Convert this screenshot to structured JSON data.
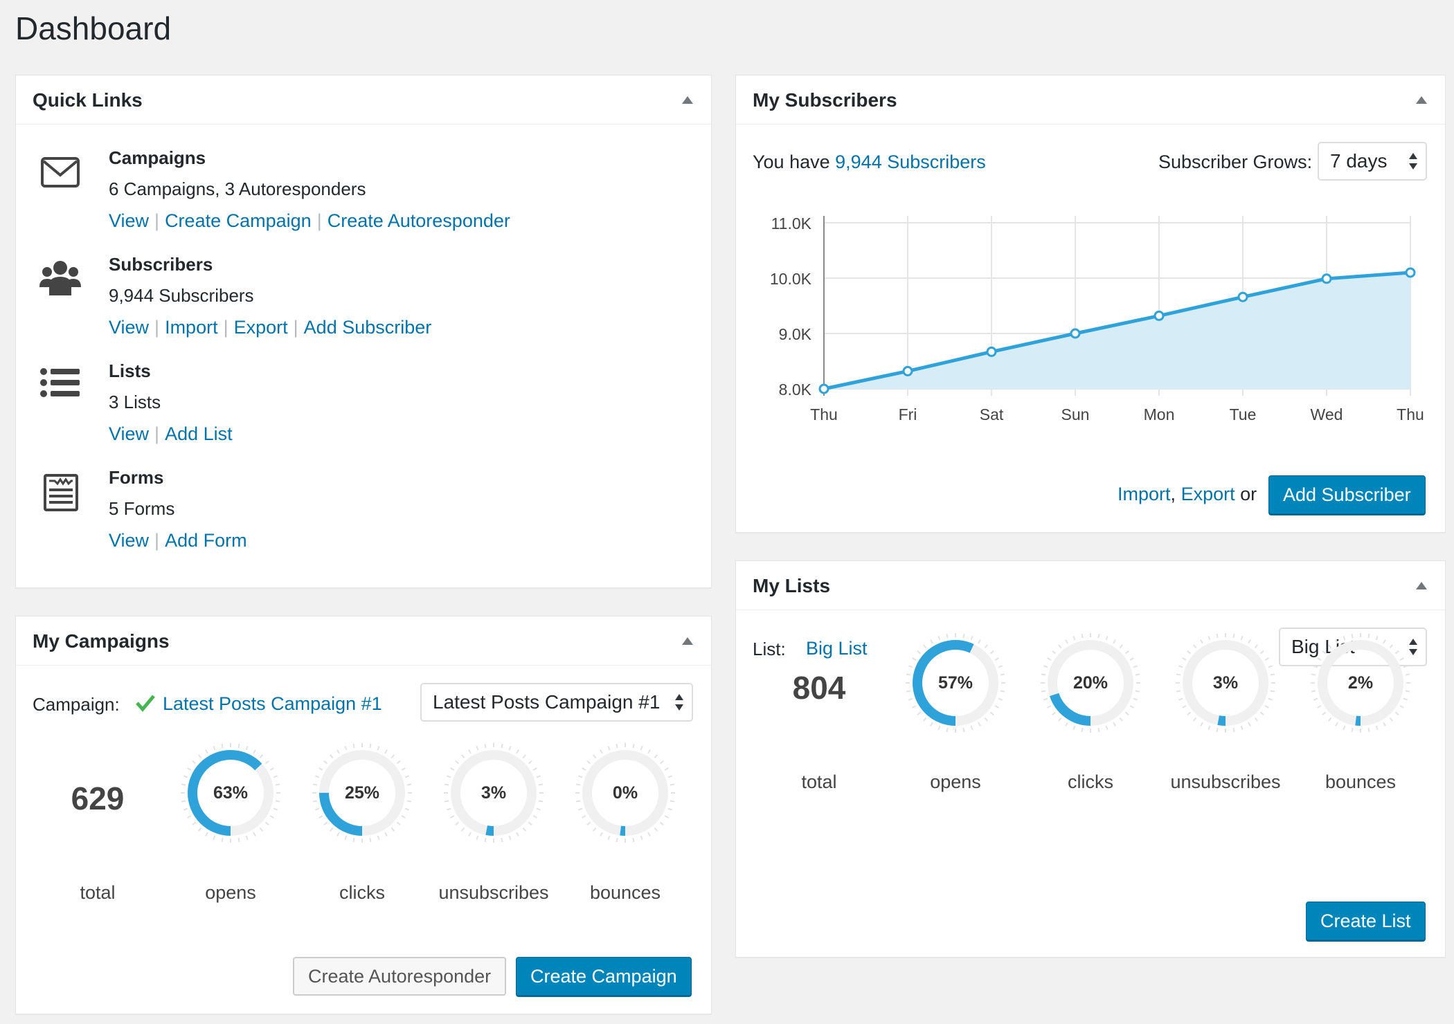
{
  "page": {
    "title": "Dashboard"
  },
  "colors": {
    "accent": "#0085ba",
    "link": "#0073aa",
    "chart_line": "#2ea2d9",
    "chart_fill": "#d6edf8",
    "check": "#46b450"
  },
  "quick_links": {
    "title": "Quick Links",
    "items": [
      {
        "icon": "envelope-icon",
        "title": "Campaigns",
        "desc": "6 Campaigns, 3 Autoresponders",
        "links": [
          "View",
          "Create Campaign",
          "Create Autoresponder"
        ]
      },
      {
        "icon": "users-icon",
        "title": "Subscribers",
        "desc": "9,944 Subscribers",
        "links": [
          "View",
          "Import",
          "Export",
          "Add Subscriber"
        ]
      },
      {
        "icon": "list-icon",
        "title": "Lists",
        "desc": "3 Lists",
        "links": [
          "View",
          "Add List"
        ]
      },
      {
        "icon": "form-icon",
        "title": "Forms",
        "desc": "5 Forms",
        "links": [
          "View",
          "Add Form"
        ]
      }
    ]
  },
  "subscribers": {
    "title": "My Subscribers",
    "you_have": "You have",
    "count_link": "9,944 Subscribers",
    "grows_label": "Subscriber Grows:",
    "grows_value": "7 days",
    "footer": {
      "import": "Import",
      "comma": ",",
      "export": "Export",
      "or": "or",
      "button": "Add Subscriber"
    }
  },
  "chart_data": {
    "type": "area",
    "title": "",
    "xlabel": "",
    "ylabel": "",
    "categories": [
      "Thu",
      "Fri",
      "Sat",
      "Sun",
      "Mon",
      "Tue",
      "Wed",
      "Thu"
    ],
    "values": [
      8000,
      8320,
      8670,
      9000,
      9320,
      9660,
      9990,
      10100
    ],
    "yticks": [
      "11.0K",
      "10.0K",
      "9.0K",
      "8.0K"
    ],
    "ylim": [
      8000,
      11000
    ],
    "grid": true,
    "legend": "none"
  },
  "campaigns": {
    "title": "My Campaigns",
    "campaign_label": "Campaign:",
    "campaign_link": "Latest Posts Campaign #1",
    "select_value": "Latest Posts Campaign #1",
    "total": "629",
    "total_label": "total",
    "stats": [
      {
        "label": "opens",
        "pct_text": "63%",
        "fraction": 0.63
      },
      {
        "label": "clicks",
        "pct_text": "25%",
        "fraction": 0.25
      },
      {
        "label": "unsubscribes",
        "pct_text": "3%",
        "fraction": 0.03
      },
      {
        "label": "bounces",
        "pct_text": "0%",
        "fraction": 0.0
      }
    ],
    "btn_autoresponder": "Create Autoresponder",
    "btn_campaign": "Create Campaign"
  },
  "lists": {
    "title": "My Lists",
    "list_label": "List:",
    "list_link": "Big List",
    "select_value": "Big List",
    "total": "804",
    "total_label": "total",
    "stats": [
      {
        "label": "opens",
        "pct_text": "57%",
        "fraction": 0.57
      },
      {
        "label": "clicks",
        "pct_text": "20%",
        "fraction": 0.2
      },
      {
        "label": "unsubscribes",
        "pct_text": "3%",
        "fraction": 0.03
      },
      {
        "label": "bounces",
        "pct_text": "2%",
        "fraction": 0.02
      }
    ],
    "btn_create": "Create List"
  }
}
